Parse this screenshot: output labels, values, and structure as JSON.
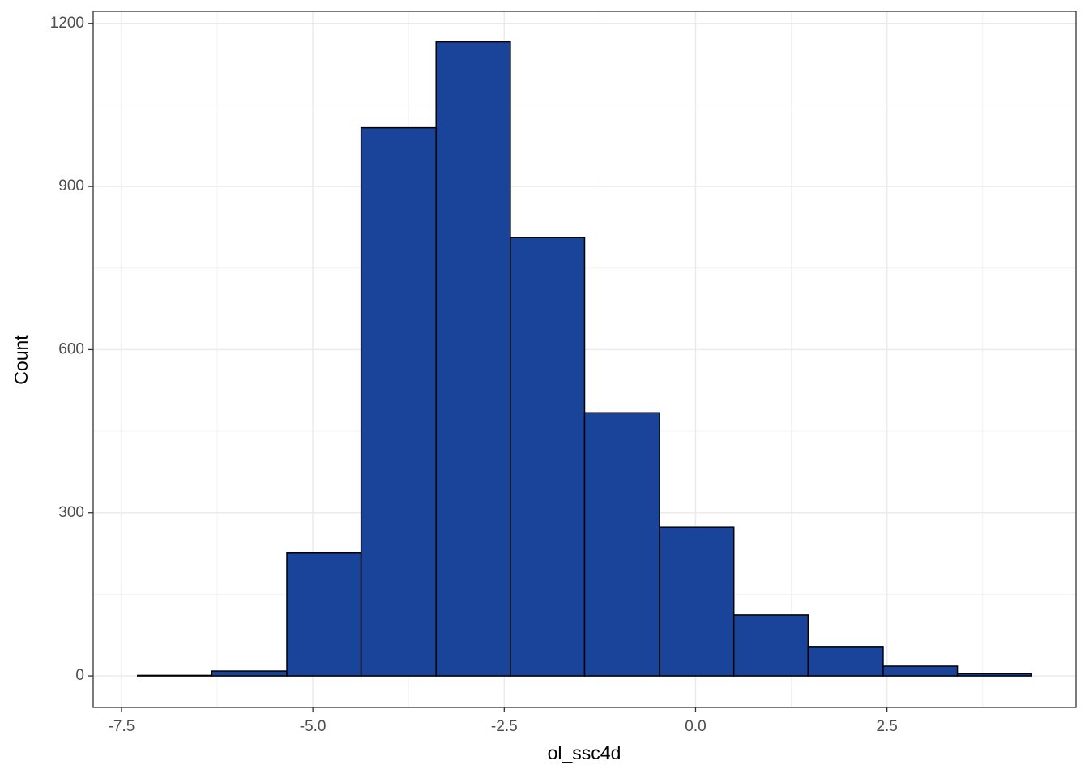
{
  "chart_data": {
    "type": "histogram",
    "x_label": "ol_ssc4d",
    "y_label": "Count",
    "bins": [
      -7.29,
      -6.32,
      -5.34,
      -4.37,
      -3.39,
      -2.42,
      -1.45,
      -0.47,
      0.5,
      1.47,
      2.45,
      3.42,
      4.39
    ],
    "values": [
      1,
      9,
      227,
      1008,
      1166,
      806,
      484,
      274,
      112,
      54,
      18,
      4
    ],
    "color": "#1a4499",
    "edge_color": "#000000",
    "xlim": [
      -7.87,
      4.97
    ],
    "ylim": [
      -58,
      1222
    ],
    "xticks": [
      -7.5,
      {
        "value": -5,
        "label": "-5.0"
      },
      -2.5,
      {
        "value": 0,
        "label": "0.0"
      },
      2.5
    ],
    "yticks": [
      0,
      300,
      600,
      900,
      1200
    ],
    "x_minor_ticks": [
      -6.25,
      -3.75,
      -1.25,
      1.25,
      3.75
    ],
    "y_minor_ticks": [
      150,
      450,
      750,
      1050
    ],
    "grid": true
  }
}
